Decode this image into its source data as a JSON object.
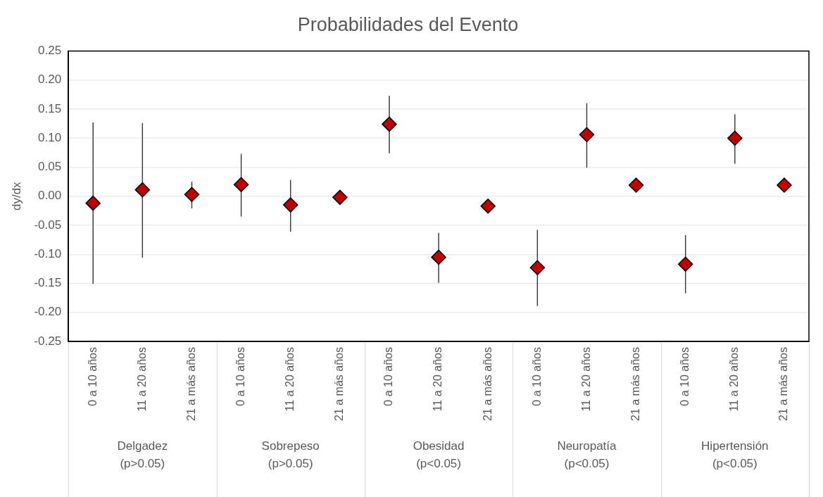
{
  "chart_data": {
    "type": "scatter",
    "title": "Probabilidades del Evento",
    "ylabel": "dy/dx",
    "categories": [
      "0 a 10 años",
      "11 a 20 años",
      "21 a más años",
      "0 a 10 años",
      "11 a 20 años",
      "21 a más años",
      "0 a 10 años",
      "11 a 20 años",
      "21 a más años",
      "0 a 10 años",
      "11 a 20 años",
      "21 a más años",
      "0 a 10 años",
      "11 a 20 años",
      "21 a más años"
    ],
    "series": [
      {
        "color": "#c00000",
        "values": [
          -0.012,
          0.011,
          0.003,
          0.02,
          -0.015,
          -0.002,
          0.124,
          -0.105,
          -0.017,
          -0.123,
          0.106,
          0.019,
          -0.117,
          0.1,
          0.019
        ],
        "errors": [
          [
            -0.151,
            0.127
          ],
          [
            -0.106,
            0.126
          ],
          [
            -0.021,
            0.025
          ],
          [
            -0.035,
            0.073
          ],
          [
            -0.061,
            0.028
          ],
          null,
          [
            0.074,
            0.173
          ],
          [
            -0.149,
            -0.063
          ],
          null,
          [
            -0.189,
            -0.058
          ],
          [
            0.049,
            0.16
          ],
          null,
          [
            -0.167,
            -0.067
          ],
          [
            0.056,
            0.141
          ],
          null
        ]
      }
    ],
    "ylim": [
      -0.25,
      0.25
    ],
    "yticks": [
      -0.25,
      {
        "value": -0.2,
        "label": "-0.20"
      },
      -0.15,
      {
        "value": -0.1,
        "label": "-0.10"
      },
      -0.05,
      {
        "value": 0,
        "label": "0.00"
      },
      0.05,
      {
        "value": 0.1,
        "label": "0.10"
      },
      0.15,
      {
        "value": 0.2,
        "label": "0.20"
      },
      0.25
    ],
    "grid": "y",
    "marker": "diamond",
    "annotations": [
      "Delgadez (p>0.05)",
      "Sobrepeso (p>0.05)",
      "Obesidad (p<0.05)",
      "Neuropatía (p<0.05)",
      "Hipertensión (p<0.05)"
    ]
  }
}
